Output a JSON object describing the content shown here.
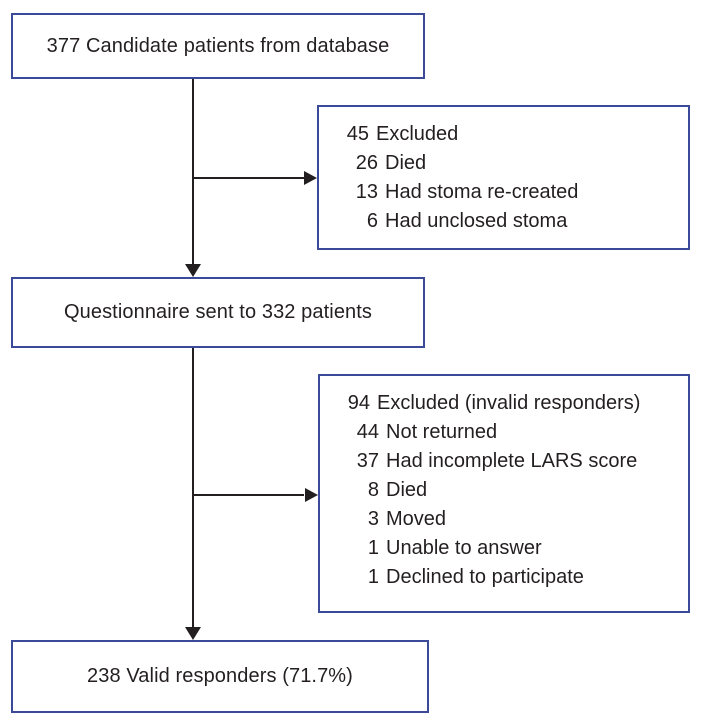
{
  "flowchart": {
    "box_candidates": {
      "text": "377 Candidate patients from database"
    },
    "exclusion1": {
      "header": {
        "num": "45",
        "label": "Excluded"
      },
      "items": [
        {
          "num": "26",
          "label": "Died"
        },
        {
          "num": "13",
          "label": "Had stoma re-created"
        },
        {
          "num": "6",
          "label": "Had unclosed stoma"
        }
      ]
    },
    "box_questionnaire": {
      "text": "Questionnaire sent to 332 patients"
    },
    "exclusion2": {
      "header": {
        "num": "94",
        "label": "Excluded (invalid responders)"
      },
      "items": [
        {
          "num": "44",
          "label": "Not returned"
        },
        {
          "num": "37",
          "label": "Had incomplete LARS score"
        },
        {
          "num": "8",
          "label": "Died"
        },
        {
          "num": "3",
          "label": "Moved"
        },
        {
          "num": "1",
          "label": "Unable to answer"
        },
        {
          "num": "1",
          "label": "Declined to participate"
        }
      ]
    },
    "box_valid": {
      "text": "238 Valid responders (71.7%)"
    },
    "colors": {
      "border": "#3a4a99",
      "line": "#231f20",
      "text": "#231f20"
    }
  }
}
